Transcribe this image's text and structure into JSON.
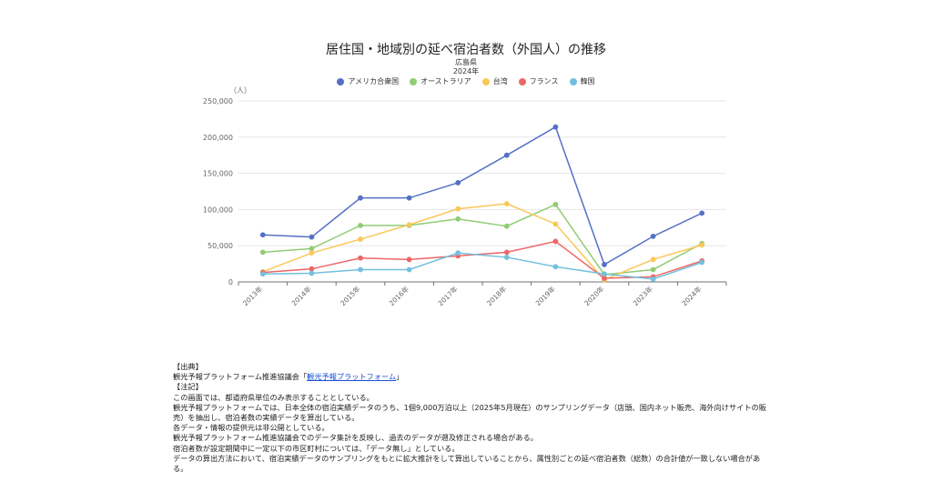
{
  "chart_data": {
    "type": "line",
    "title": "居住国・地域別の延べ宿泊者数（外国人）の推移",
    "subtitle": [
      "広島県",
      "2024年"
    ],
    "ylabel": "（人）",
    "ylim": [
      0,
      250000
    ],
    "yticks": [
      "0",
      "50,000",
      "100,000",
      "150,000",
      "200,000",
      "250,000"
    ],
    "ytick_values": [
      0,
      50000,
      100000,
      150000,
      200000,
      250000
    ],
    "categories": [
      "2013年",
      "2014年",
      "2015年",
      "2016年",
      "2017年",
      "2018年",
      "2019年",
      "2020年",
      "2023年",
      "2024年"
    ],
    "grid": true,
    "legend": "top",
    "series": [
      {
        "name": "アメリカ合衆国",
        "color": "#5470c6",
        "values": [
          65000,
          62000,
          116000,
          116000,
          137000,
          175000,
          214000,
          24000,
          63000,
          95000
        ]
      },
      {
        "name": "オーストラリア",
        "color": "#91cc75",
        "values": [
          41000,
          46000,
          78000,
          78000,
          87000,
          77000,
          107000,
          10000,
          17000,
          53000
        ]
      },
      {
        "name": "台湾",
        "color": "#fac858",
        "values": [
          14000,
          40000,
          59000,
          79000,
          101000,
          108000,
          80000,
          3000,
          31000,
          51000
        ]
      },
      {
        "name": "フランス",
        "color": "#ee6666",
        "values": [
          13000,
          18000,
          33000,
          31000,
          36000,
          41000,
          56000,
          5000,
          7000,
          29000
        ]
      },
      {
        "name": "韓国",
        "color": "#73c0de",
        "values": [
          11000,
          12000,
          17000,
          17000,
          40000,
          34000,
          21000,
          11000,
          4000,
          27000
        ]
      }
    ]
  },
  "notes": {
    "source_heading": "【出典】",
    "source_text_before": "観光予報プラットフォーム推進協議会「",
    "source_link": "観光予報プラットフォーム",
    "source_text_after": "」",
    "notes_heading": "【注記】",
    "lines": [
      "この画面では、都道府県単位のみ表示することとしている。",
      "観光予報プラットフォームでは、日本全体の宿泊実績データのうち、1個9,000万泊以上（2025年5月現在）のサンプリングデータ（店頭、国内ネット販売、海外向けサイトの販売）を抽出し、宿泊者数の実績データを算出している。",
      "各データ・情報の提供元は非公開としている。",
      "観光予報プラットフォーム推進協議会でのデータ集計を反映し、過去のデータが遡及修正される場合がある。",
      "宿泊者数が設定期間中に一定以下の市区町村については、「データ無し」としている。",
      "データの算出方法において、宿泊実績データのサンプリングをもとに拡大推計をして算出していることから、属性別ごとの延べ宿泊者数（総数）の合計値が一致しない場合がある。"
    ]
  }
}
